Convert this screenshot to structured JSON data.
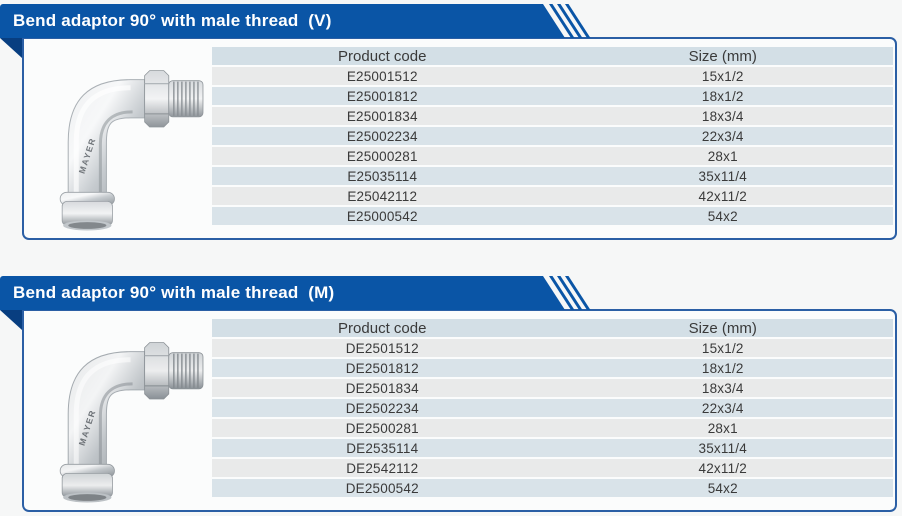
{
  "theme": {
    "ribbon_blue": "#0a55a6",
    "fold_blue": "#083e80",
    "panel_border": "#2b5fa5",
    "panel_bg": "#fbfcfc",
    "page_bg": "#f6f7f7",
    "header_row_bg": "#d3dfe6",
    "row_blue": "#d9e3e9",
    "row_gray": "#e9eaea",
    "text_dark": "#3a3a3a"
  },
  "sections": [
    {
      "title": "Bend adaptor 90° with male thread  (V)",
      "image": {
        "brand": "MAYER"
      },
      "table": {
        "columns": [
          "Product code",
          "Size (mm)"
        ],
        "rows": [
          [
            "E25001512",
            "15x1/2"
          ],
          [
            "E25001812",
            "18x1/2"
          ],
          [
            "E25001834",
            "18x3/4"
          ],
          [
            "E25002234",
            "22x3/4"
          ],
          [
            "E25000281",
            "28x1"
          ],
          [
            "E25035114",
            "35x11/4"
          ],
          [
            "E25042112",
            "42x11/2"
          ],
          [
            "E25000542",
            "54x2"
          ]
        ]
      }
    },
    {
      "title": "Bend adaptor 90° with male thread  (M)",
      "image": {
        "brand": "MAYER"
      },
      "table": {
        "columns": [
          "Product code",
          "Size (mm)"
        ],
        "rows": [
          [
            "DE2501512",
            "15x1/2"
          ],
          [
            "DE2501812",
            "18x1/2"
          ],
          [
            "DE2501834",
            "18x3/4"
          ],
          [
            "DE2502234",
            "22x3/4"
          ],
          [
            "DE2500281",
            "28x1"
          ],
          [
            "DE2535114",
            "35x11/4"
          ],
          [
            "DE2542112",
            "42x11/2"
          ],
          [
            "DE2500542",
            "54x2"
          ]
        ]
      }
    }
  ]
}
